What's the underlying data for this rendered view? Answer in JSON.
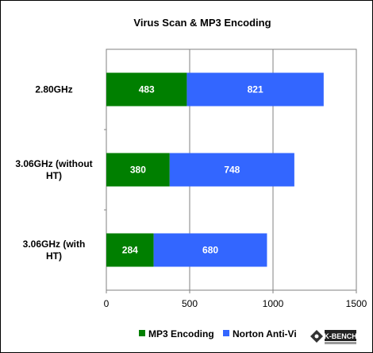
{
  "chart_data": {
    "type": "bar",
    "orientation": "horizontal",
    "stacked": true,
    "title": "Virus Scan & MP3 Encoding",
    "categories": [
      [
        "2.80GHz"
      ],
      [
        "3.06GHz (without",
        "HT)"
      ],
      [
        "3.06GHz (with",
        "HT)"
      ]
    ],
    "series": [
      {
        "name": "MP3 Encoding",
        "color": "#007f00",
        "values": [
          483,
          380,
          284
        ]
      },
      {
        "name": "Norton Anti-Vi",
        "color": "#3366ff",
        "values": [
          821,
          748,
          680
        ]
      }
    ],
    "xlim": [
      0,
      1500
    ],
    "xticks": [
      0,
      500,
      1000,
      1500
    ],
    "grid": "vertical",
    "legend": "bottom",
    "logo_text": "K-BENCH"
  }
}
